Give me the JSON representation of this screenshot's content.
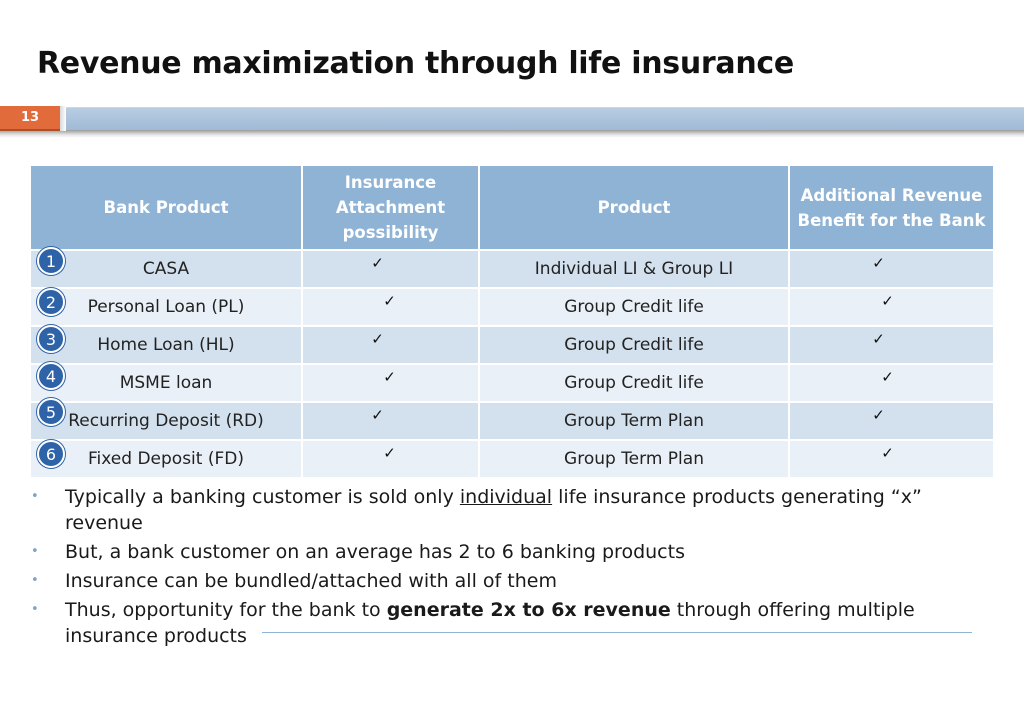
{
  "slide": {
    "title": "Revenue maximization through life insurance",
    "number": "13"
  },
  "table": {
    "headers": [
      "Bank Product",
      "Insurance Attachment possibility",
      "Product",
      "Additional Revenue Benefit for the Bank"
    ],
    "check_symbol": "✓",
    "rows": [
      {
        "index": "1",
        "bank_product": "CASA",
        "attachment": true,
        "product": "Individual LI & Group LI",
        "benefit": true
      },
      {
        "index": "2",
        "bank_product": "Personal Loan (PL)",
        "attachment": true,
        "product": "Group Credit life",
        "benefit": true
      },
      {
        "index": "3",
        "bank_product": "Home Loan (HL)",
        "attachment": true,
        "product": "Group Credit life",
        "benefit": true
      },
      {
        "index": "4",
        "bank_product": "MSME loan",
        "attachment": true,
        "product": "Group Credit life",
        "benefit": true
      },
      {
        "index": "5",
        "bank_product": "Recurring Deposit (RD)",
        "attachment": true,
        "product": "Group Term Plan",
        "benefit": true
      },
      {
        "index": "6",
        "bank_product": "Fixed Deposit (FD)",
        "attachment": true,
        "product": "Group Term Plan",
        "benefit": true
      }
    ]
  },
  "bullets": {
    "b1_pre": "Typically a banking customer is sold only ",
    "b1_underline": "individual",
    "b1_post": " life insurance products generating “x” revenue",
    "b2": "But, a bank customer on an average has 2 to 6 banking products",
    "b3": "Insurance can be bundled/attached with all of them",
    "b4_pre": "Thus, opportunity for the bank to ",
    "b4_bold": "generate 2x to 6x revenue",
    "b4_post": " through offering multiple insurance products",
    "marker": "•"
  },
  "colors": {
    "header_bg": "#8fb3d5",
    "row_odd": "#d3e0ed",
    "row_even": "#eaf0f7",
    "badge": "#2e63a8",
    "slide_number_bg": "#e16b3a"
  }
}
